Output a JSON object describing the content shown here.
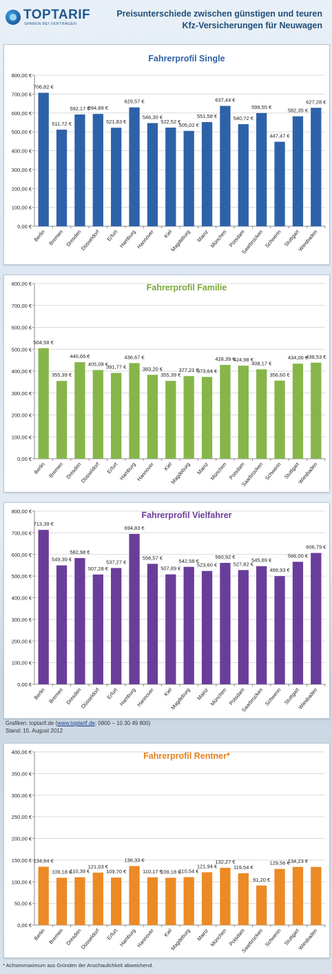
{
  "header": {
    "logo_text": "TOPTARIF",
    "logo_sub": "SPAREN BEI VERTRÄGEN",
    "title_line1": "Preisunterschiede zwischen günstigen und teuren",
    "title_line2": "Kfz-Versicherungen für Neuwagen"
  },
  "footer": {
    "source_prefix": "Grafiken: toptarif.de (",
    "source_link": "www.toptarif.de",
    "source_suffix": "; 0800 – 10 30 49 800)",
    "date": "Stand: 15. August 2012",
    "footnote": "* Achsenmaximum aus Gründen der Anschaulichkeit abweichend."
  },
  "chart_data": [
    {
      "type": "bar",
      "title": "Fahrerprofil Single",
      "color": "#2e62a8",
      "title_color": "#2e62a8",
      "categories": [
        "Berlin",
        "Bremen",
        "Dresden",
        "Düsseldorf",
        "Erfurt",
        "Hamburg",
        "Hannover",
        "Kiel",
        "Magdeburg",
        "Mainz",
        "München",
        "Potsdam",
        "Saarbrücken",
        "Schwerin",
        "Stuttgart",
        "Wiesbaden"
      ],
      "values": [
        706.82,
        511.72,
        592.17,
        594.89,
        521.83,
        629.57,
        546.3,
        522.52,
        505.02,
        551.58,
        637.44,
        540.72,
        599.55,
        447.47,
        582.35,
        627.28
      ],
      "labels": [
        "706,82 €",
        "511,72 €",
        "592,17 €",
        "594,89 €",
        "521,83 €",
        "629,57 €",
        "546,30 €",
        "522,52 €",
        "505,02 €",
        "551,58 €",
        "637,44 €",
        "540,72 €",
        "599,55 €",
        "447,47 €",
        "582,35 €",
        "627,28 €"
      ],
      "ylim": [
        0,
        800
      ],
      "yticks": [
        "0,00 €",
        "100,00 €",
        "200,00 €",
        "300,00 €",
        "400,00 €",
        "500,00 €",
        "600,00 €",
        "700,00 €",
        "800,00 €"
      ],
      "ytick_values": [
        0,
        100,
        200,
        300,
        400,
        500,
        600,
        700,
        800
      ],
      "grid": true
    },
    {
      "type": "bar",
      "title": "Fahrerprofil Familie",
      "color": "#86b64a",
      "title_color": "#7aa83c",
      "categories": [
        "Berlin",
        "Bremen",
        "Dresden",
        "Düsseldorf",
        "Erfurt",
        "Hamburg",
        "Hannover",
        "Kiel",
        "Magdeburg",
        "Mainz",
        "München",
        "Potsdam",
        "Saarbrücken",
        "Schwerin",
        "Stuttgart",
        "Wiesbaden"
      ],
      "values": [
        504.58,
        355.39,
        440.66,
        405.08,
        391.77,
        436.67,
        383.2,
        355.39,
        377.21,
        373.64,
        428.39,
        424.98,
        408.17,
        356.6,
        434.06,
        438.53
      ],
      "labels": [
        "504,58 €",
        "355,39 €",
        "440,66 €",
        "405,08 €",
        "391,77 €",
        "436,67 €",
        "383,20 €",
        "355,39 €",
        "377,21 €",
        "373,64 €",
        "428,39 €",
        "424,98 €",
        "408,17 €",
        "356,60 €",
        "434,06 €",
        "438,53 €"
      ],
      "ylim": [
        0,
        800
      ],
      "yticks": [
        "0,00 €",
        "100,00 €",
        "200,00 €",
        "300,00 €",
        "400,00 €",
        "500,00 €",
        "600,00 €",
        "700,00 €",
        "800,00 €"
      ],
      "ytick_values": [
        0,
        100,
        200,
        300,
        400,
        500,
        600,
        700,
        800
      ],
      "grid": true
    },
    {
      "type": "bar",
      "title": "Fahrerprofil Vielfahrer",
      "color": "#6a3d9a",
      "title_color": "#6a3d9a",
      "categories": [
        "Berlin",
        "Bremen",
        "Dresden",
        "Düsseldorf",
        "Erfurt",
        "Hamburg",
        "Hannover",
        "Kiel",
        "Magdeburg",
        "Mainz",
        "München",
        "Potsdam",
        "Saarbrücken",
        "Schwerin",
        "Stuttgart",
        "Wiesbaden"
      ],
      "values": [
        713.39,
        549.39,
        582.98,
        507.28,
        537.27,
        694.83,
        556.57,
        507.89,
        542.58,
        523.6,
        560.92,
        527.82,
        545.89,
        499.93,
        566.0,
        606.79
      ],
      "labels": [
        "713,39 €",
        "549,39 €",
        "582,98 €",
        "507,28 €",
        "537,27 €",
        "694,83 €",
        "556,57 €",
        "507,89 €",
        "542,58 €",
        "523,60 €",
        "560,92 €",
        "527,82 €",
        "545,89 €",
        "499,93 €",
        "566,00 €",
        "606,79 €"
      ],
      "ylim": [
        0,
        800
      ],
      "yticks": [
        "0,00 €",
        "100,00 €",
        "200,00 €",
        "300,00 €",
        "400,00 €",
        "500,00 €",
        "600,00 €",
        "700,00 €",
        "800,00 €"
      ],
      "ytick_values": [
        0,
        100,
        200,
        300,
        400,
        500,
        600,
        700,
        800
      ],
      "grid": true
    },
    {
      "type": "bar",
      "title": "Fahrerprofil Rentner*",
      "color": "#ec8a25",
      "title_color": "#e8801c",
      "categories": [
        "Berlin",
        "Bremen",
        "Dresden",
        "Düsseldorf",
        "Erfurt",
        "Hamburg",
        "Hannover",
        "Kiel",
        "Magdeburg",
        "Mainz",
        "München",
        "Potsdam",
        "Saarbrücken",
        "Schwerin",
        "Stuttgart",
        "Wiesbaden"
      ],
      "values": [
        134.64,
        109.18,
        110.39,
        121.03,
        109.7,
        136.33,
        110.17,
        109.18,
        110.54,
        121.94,
        132.27,
        119.54,
        91.2,
        129.56,
        134.23,
        134.23
      ],
      "labels": [
        "134,64 €",
        "109,18 €",
        "110,39 €",
        "121,03 €",
        "109,70 €",
        "136,33 €",
        "110,17 €",
        "109,18 €",
        "110,54 €",
        "121,94 €",
        "132,27 €",
        "119,54 €",
        "91,20 €",
        "129,56 €",
        "134,23 €",
        ""
      ],
      "ylim": [
        0,
        400
      ],
      "yticks": [
        "0,00 €",
        "50,00 €",
        "100,00 €",
        "150,00 €",
        "200,00 €",
        "250,00 €",
        "300,00 €",
        "350,00 €",
        "400,00 €"
      ],
      "ytick_values": [
        0,
        50,
        100,
        150,
        200,
        250,
        300,
        350,
        400
      ],
      "grid": true
    }
  ]
}
